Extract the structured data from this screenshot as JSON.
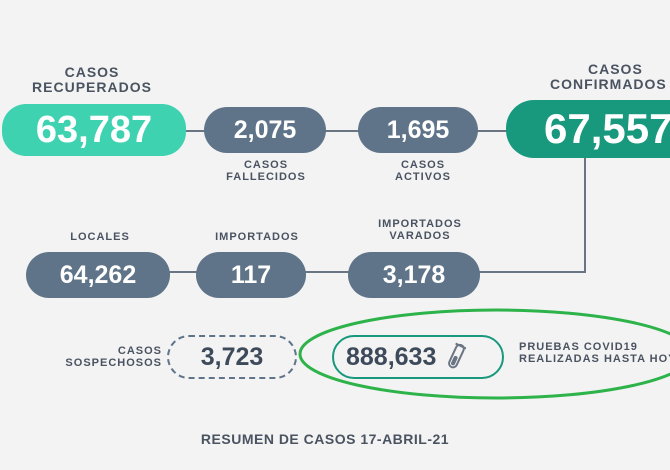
{
  "top_row": {
    "recuperados": {
      "label_line1": "CASOS",
      "label_line2": "RECUPERADOS",
      "value": "63,787"
    },
    "fallecidos": {
      "value": "2,075",
      "label_line1": "CASOS",
      "label_line2": "FALLECIDOS"
    },
    "activos": {
      "value": "1,695",
      "label_line1": "CASOS",
      "label_line2": "ACTIVOS"
    },
    "confirmados": {
      "label_line1": "CASOS",
      "label_line2": "CONFIRMADOS",
      "value": "67,557"
    }
  },
  "middle_row": {
    "locales": {
      "label": "LOCALES",
      "value": "64,262"
    },
    "importados": {
      "label": "IMPORTADOS",
      "value": "117"
    },
    "importados_varados": {
      "label_line1": "IMPORTADOS",
      "label_line2": "VARADOS",
      "value": "3,178"
    }
  },
  "bottom_row": {
    "sospechosos": {
      "label_line1": "CASOS",
      "label_line2": "SOSPECHOSOS",
      "value": "3,723"
    },
    "pruebas": {
      "value": "888,633",
      "label_line1": "PRUEBAS COVID19",
      "label_line2": "REALIZADAS HASTA HOY"
    }
  },
  "footer": {
    "text": "RESUMEN DE CASOS 17-ABRIL-21"
  },
  "colors": {
    "background": "#f3f3f3",
    "slate_pill": "#5f7489",
    "recovered_pill": "#3ed2b1",
    "confirmed_pill": "#18997d",
    "highlight_ellipse": "#2db34a"
  },
  "icons": {
    "pruebas": "test-tube-icon"
  }
}
